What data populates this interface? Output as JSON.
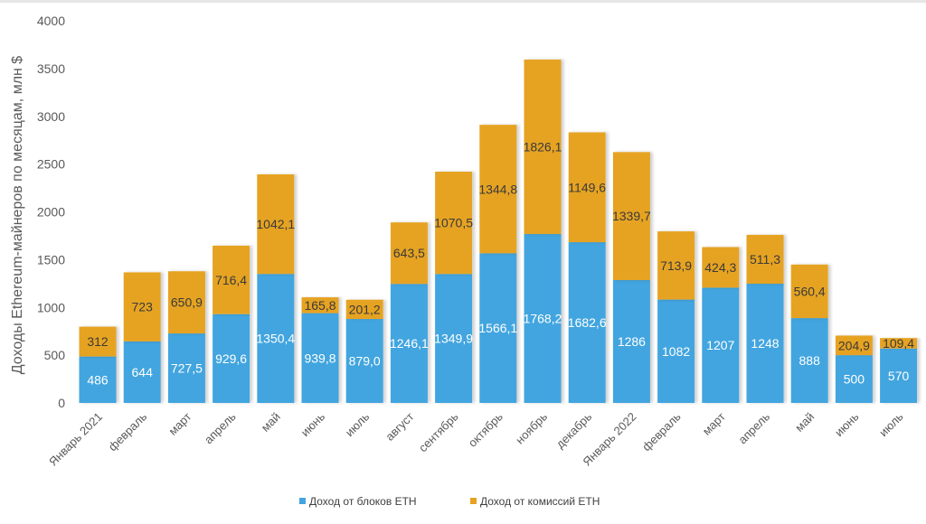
{
  "chart_data": {
    "type": "bar",
    "stacked": true,
    "title": "",
    "xlabel": "",
    "ylabel": "Доходы Ethereum-майнеров по месяцам, млн $",
    "ylim": [
      0,
      4000
    ],
    "yticks": [
      "0",
      "500",
      "1000",
      "1500",
      "2000",
      "2500",
      "3000",
      "3500",
      "4000"
    ],
    "grid": false,
    "legend_position": "bottom",
    "categories": [
      "Январь 2021",
      "февраль",
      "март",
      "апрель",
      "май",
      "июнь",
      "июль",
      "август",
      "сентябрь",
      "октябрь",
      "ноябрь",
      "декабрь",
      "Январь 2022",
      "февраль",
      "март",
      "апрель",
      "май",
      "июнь",
      "июль"
    ],
    "series": [
      {
        "name": "Доход от блоков ETH",
        "color": "#42a5df",
        "values": [
          486,
          644,
          727.5,
          929.6,
          1350.4,
          939.8,
          879.0,
          1246.1,
          1349.9,
          1566.1,
          1768.2,
          1682.6,
          1286,
          1082,
          1207,
          1248,
          888,
          500,
          570
        ],
        "labels": [
          "486",
          "644",
          "727,5",
          "929,6",
          "1350,4",
          "939,8",
          "879,0",
          "1246,1",
          "1349,9",
          "1566,1",
          "1768,2",
          "1682,6",
          "1286",
          "1082",
          "1207",
          "1248",
          "888",
          "500",
          "570"
        ]
      },
      {
        "name": "Доход от комиссий ETH",
        "color": "#e6a321",
        "values": [
          312,
          723,
          650.9,
          716.4,
          1042.1,
          165.8,
          201.2,
          643.5,
          1070.5,
          1344.8,
          1826.1,
          1149.6,
          1339.7,
          713.9,
          424.3,
          511.3,
          560.4,
          204.9,
          109.4
        ],
        "labels": [
          "312",
          "723",
          "650,9",
          "716,4",
          "1042,1",
          "165,8",
          "201,2",
          "643,5",
          "1070,5",
          "1344,8",
          "1826,1",
          "1149,6",
          "1339,7",
          "713,9",
          "424,3",
          "511,3",
          "560,4",
          "204,9",
          "109,4"
        ]
      }
    ]
  }
}
